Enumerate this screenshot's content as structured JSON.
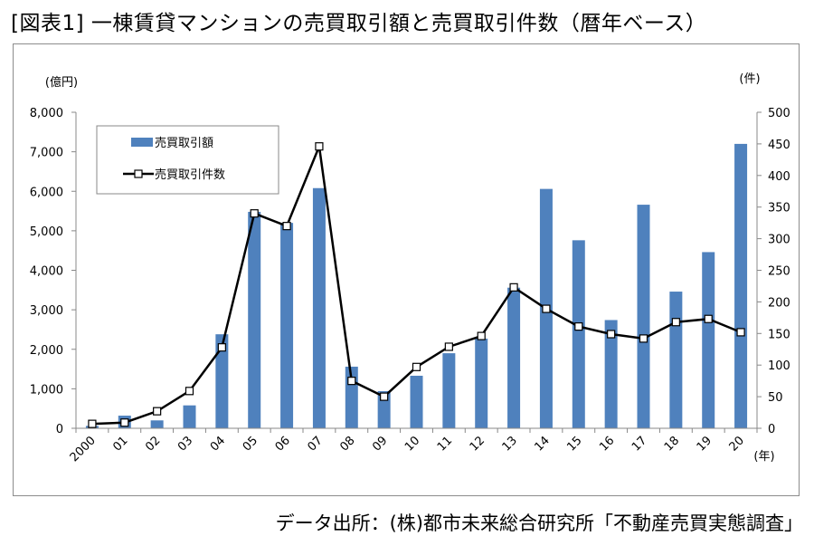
{
  "title": "[図表1] 一棟賃貸マンションの売買取引額と売買取引件数（暦年ベース）",
  "source": "データ出所：(株)都市未来総合研究所「不動産売買実態調査」",
  "chart_data": {
    "type": "bar",
    "categories": [
      "2000",
      "01",
      "02",
      "03",
      "04",
      "05",
      "06",
      "07",
      "08",
      "09",
      "10",
      "11",
      "12",
      "13",
      "14",
      "15",
      "16",
      "17",
      "18",
      "19",
      "20"
    ],
    "x_unit": "(年)",
    "y_left": {
      "unit": "(億円)",
      "ylim": [
        0,
        8000
      ],
      "ticks": [
        "0",
        "1,000",
        "2,000",
        "3,000",
        "4,000",
        "5,000",
        "6,000",
        "7,000",
        "8,000"
      ]
    },
    "y_right": {
      "unit": "(件)",
      "ylim": [
        0,
        500
      ],
      "ticks": [
        "0",
        "50",
        "100",
        "150",
        "200",
        "250",
        "300",
        "350",
        "400",
        "450",
        "500"
      ]
    },
    "series": [
      {
        "name": "売買取引額",
        "type": "bar",
        "axis": "left",
        "color": "#4f81bd",
        "values": [
          60,
          320,
          200,
          580,
          2380,
          5480,
          5200,
          6080,
          1560,
          940,
          1330,
          1900,
          2270,
          3560,
          6060,
          4760,
          2740,
          5660,
          3460,
          4460,
          7200
        ]
      },
      {
        "name": "売買取引件数",
        "type": "line",
        "axis": "right",
        "color": "#000000",
        "values": [
          7,
          9,
          27,
          59,
          128,
          340,
          320,
          446,
          75,
          50,
          97,
          129,
          146,
          223,
          189,
          161,
          149,
          142,
          168,
          173,
          152
        ]
      }
    ],
    "legend_position": "top-left",
    "grid": false
  }
}
